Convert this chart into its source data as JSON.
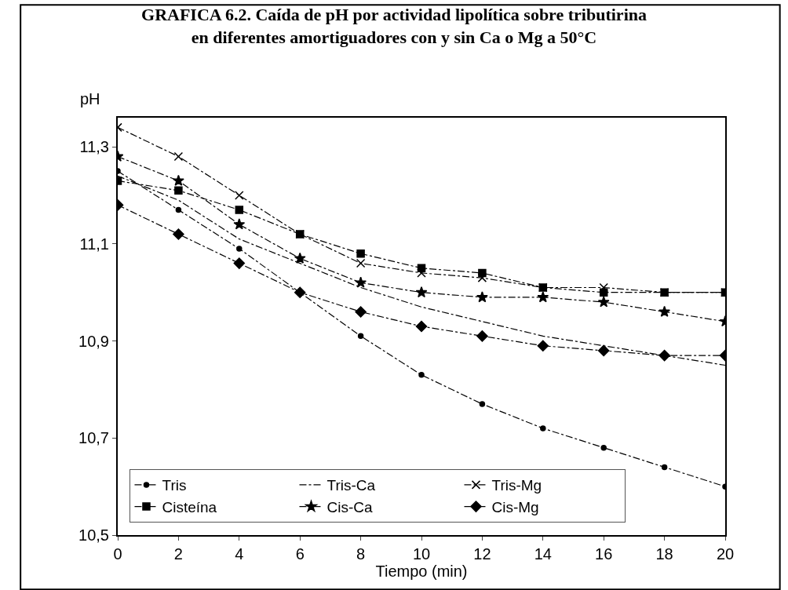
{
  "chart_data": {
    "type": "line",
    "title": "GRAFICA 6.2. Caída de pH por actividad lipolítica sobre tributirina\nen diferentes amortiguadores con y sin Ca o Mg a 50°C",
    "xlabel": "Tiempo (min)",
    "ylabel": "pH",
    "x": [
      0,
      2,
      4,
      6,
      8,
      10,
      12,
      14,
      16,
      18,
      20
    ],
    "series": [
      {
        "name": "Tris",
        "color": "#000000",
        "marker": "circle",
        "values": [
          11.25,
          11.17,
          11.09,
          11.0,
          10.91,
          10.83,
          10.77,
          10.72,
          10.68,
          10.64,
          10.6
        ]
      },
      {
        "name": "Tris-Ca",
        "color": "#000000",
        "marker": "none",
        "values": [
          11.24,
          11.19,
          11.11,
          11.06,
          11.01,
          10.97,
          10.94,
          10.91,
          10.89,
          10.87,
          10.85
        ]
      },
      {
        "name": "Tris-Mg",
        "color": "#000000",
        "marker": "cross",
        "values": [
          11.34,
          11.28,
          11.2,
          11.12,
          11.06,
          11.04,
          11.03,
          11.01,
          11.01,
          11.0,
          11.0
        ]
      },
      {
        "name": "Cisteína",
        "color": "#000000",
        "marker": "square",
        "values": [
          11.23,
          11.21,
          11.17,
          11.12,
          11.08,
          11.05,
          11.04,
          11.01,
          11.0,
          11.0,
          11.0
        ]
      },
      {
        "name": "Cis-Ca",
        "color": "#000000",
        "marker": "star",
        "values": [
          11.28,
          11.23,
          11.14,
          11.07,
          11.02,
          11.0,
          10.99,
          10.99,
          10.98,
          10.96,
          10.94
        ]
      },
      {
        "name": "Cis-Mg",
        "color": "#000000",
        "marker": "diamond",
        "values": [
          11.18,
          11.12,
          11.06,
          11.0,
          10.96,
          10.93,
          10.91,
          10.89,
          10.88,
          10.87,
          10.87
        ]
      }
    ],
    "xlim": [
      0,
      20
    ],
    "xticks": [
      0,
      2,
      4,
      6,
      8,
      10,
      12,
      14,
      16,
      18,
      20
    ],
    "ylim": [
      10.5,
      11.36
    ],
    "yticks": [
      {
        "value": 10.5,
        "label": "10,5"
      },
      {
        "value": 10.7,
        "label": "10,7"
      },
      {
        "value": 10.9,
        "label": "10,9"
      },
      {
        "value": 11.1,
        "label": "11,1"
      },
      {
        "value": 11.3,
        "label": "11,3"
      }
    ],
    "legend": "bottom left",
    "line_style": "dashed"
  }
}
